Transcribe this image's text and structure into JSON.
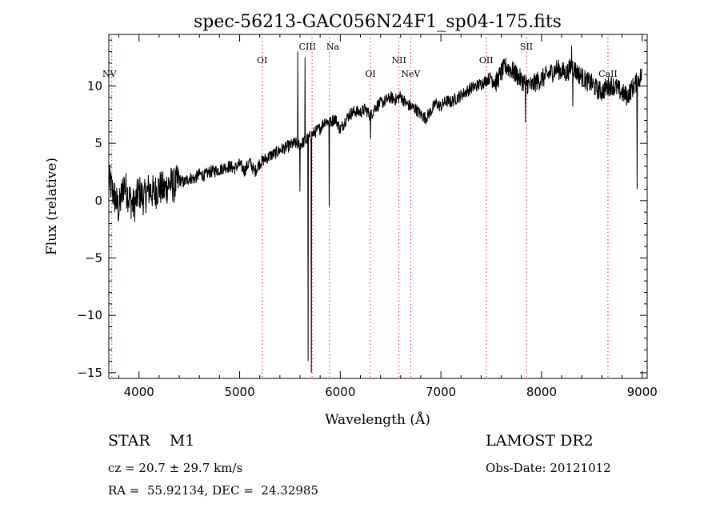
{
  "chart_data": {
    "type": "line",
    "title": "spec-56213-GAC056N24F1_sp04-175.fits",
    "xlabel": "Wavelength (Å)",
    "ylabel": "Flux (relative)",
    "xlim": [
      3700,
      9050
    ],
    "ylim": [
      -15.5,
      14.5
    ],
    "xticks": [
      4000,
      5000,
      6000,
      7000,
      8000,
      9000
    ],
    "yticks": [
      -15,
      -10,
      -5,
      0,
      5,
      10
    ],
    "grid": false,
    "legend": "none",
    "series": [
      {
        "x": [
          3700,
          3750,
          3800,
          3850,
          3900,
          3950,
          4000,
          4050,
          4100,
          4150,
          4200,
          4250,
          4300,
          4350,
          4400,
          4450,
          4500,
          4550,
          4600,
          4650,
          4700,
          4750,
          4800,
          4850,
          4900,
          4950,
          5000,
          5050,
          5100,
          5150,
          5200,
          5250,
          5300,
          5350,
          5400,
          5450,
          5500,
          5550,
          5600,
          5650,
          5700,
          5750,
          5800,
          5850,
          5900,
          5950,
          6000,
          6050,
          6100,
          6150,
          6200,
          6250,
          6300,
          6350,
          6400,
          6450,
          6500,
          6550,
          6600,
          6650,
          6700,
          6750,
          6800,
          6850,
          6900,
          6950,
          7000,
          7050,
          7100,
          7150,
          7200,
          7250,
          7300,
          7350,
          7400,
          7450,
          7500,
          7550,
          7600,
          7650,
          7700,
          7750,
          7800,
          7850,
          7900,
          7950,
          8000,
          8050,
          8100,
          8150,
          8200,
          8250,
          8300,
          8350,
          8400,
          8450,
          8500,
          8550,
          8600,
          8650,
          8700,
          8750,
          8800,
          8850,
          8900,
          8950,
          9000
        ],
        "y": [
          1.8,
          0.5,
          -0.8,
          1.5,
          0.3,
          -0.5,
          0.8,
          0.2,
          1.0,
          0.6,
          1.2,
          0.9,
          1.5,
          1.3,
          1.8,
          1.6,
          2.0,
          1.9,
          2.3,
          2.2,
          2.5,
          2.6,
          2.7,
          2.9,
          3.0,
          2.8,
          3.2,
          2.6,
          3.4,
          2.5,
          3.3,
          3.6,
          3.9,
          4.1,
          4.4,
          4.6,
          4.8,
          5.0,
          4.9,
          5.2,
          5.6,
          6.0,
          6.3,
          7.0,
          6.8,
          7.2,
          6.2,
          7.0,
          7.6,
          7.8,
          7.7,
          8.0,
          7.4,
          8.2,
          8.5,
          8.7,
          9.0,
          8.8,
          9.1,
          8.5,
          8.2,
          8.0,
          7.5,
          7.2,
          7.8,
          8.5,
          8.2,
          8.7,
          8.6,
          8.9,
          9.2,
          9.5,
          9.8,
          10.0,
          10.2,
          10.5,
          10.8,
          10.3,
          11.2,
          11.7,
          11.4,
          11.0,
          10.5,
          10.2,
          10.0,
          10.4,
          10.6,
          10.9,
          11.2,
          11.5,
          11.3,
          11.1,
          11.8,
          11.2,
          10.8,
          10.4,
          10.2,
          9.7,
          9.5,
          9.9,
          10.1,
          9.8,
          9.4,
          9.1,
          9.8,
          10.4,
          11.0
        ]
      }
    ],
    "spikes": [
      {
        "x": 5578,
        "y": 13.0
      },
      {
        "x": 5600,
        "y": 0.8
      },
      {
        "x": 5650,
        "y": 12.5
      },
      {
        "x": 5680,
        "y": -14.0
      },
      {
        "x": 5712,
        "y": -15.0
      },
      {
        "x": 5890,
        "y": -0.5
      },
      {
        "x": 6300,
        "y": 5.4
      },
      {
        "x": 7840,
        "y": 6.8
      },
      {
        "x": 8300,
        "y": 13.5
      },
      {
        "x": 8310,
        "y": 8.2
      },
      {
        "x": 8950,
        "y": 1.0
      },
      {
        "x": 9000,
        "y": 11.5
      }
    ],
    "lines": [
      {
        "label": "NV",
        "x": 3730,
        "row": 2
      },
      {
        "label": "OI",
        "x": 5224,
        "row": 1
      },
      {
        "label": "CIII",
        "x": 5720,
        "row": 0
      },
      {
        "label": "Na",
        "x": 5893,
        "row": 0
      },
      {
        "label": "OI",
        "x": 6300,
        "row": 2
      },
      {
        "label": "NII",
        "x": 6583,
        "row": 1
      },
      {
        "label": "NeV",
        "x": 6700,
        "row": 2
      },
      {
        "label": "OII",
        "x": 7450,
        "row": 1
      },
      {
        "label": "SII",
        "x": 7850,
        "row": 0
      },
      {
        "label": "CaII",
        "x": 8660,
        "row": 2
      }
    ]
  },
  "info": {
    "object_line": "STAR    M1",
    "cz_line": "cz = 20.7 ± 29.7 km/s",
    "radec_line": "RA =  55.92134, DEC =  24.32985",
    "survey_line": "LAMOST DR2",
    "obsdate_line": "Obs-Date: 20121012"
  },
  "colors": {
    "spectrum": "#000000",
    "axes": "#000000",
    "line_markers": "#e02020"
  }
}
